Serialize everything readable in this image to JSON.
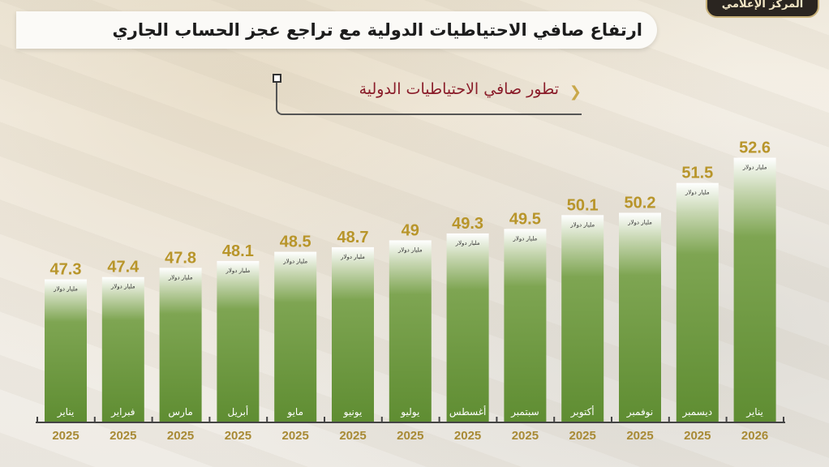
{
  "logo_text": "المركز الإعلامي",
  "title": "ارتفاع صافي الاحتياطيات الدولية مع تراجع عجز الحساب الجاري",
  "subtitle": "تطور صافي الاحتياطيات الدولية",
  "chart_data": {
    "type": "bar",
    "title": "تطور صافي الاحتياطيات الدولية",
    "unit": "مليار دولار",
    "categories": [
      "يناير",
      "فبراير",
      "مارس",
      "أبريل",
      "مايو",
      "يونيو",
      "يوليو",
      "أغسطس",
      "سبتمبر",
      "أكتوبر",
      "نوفمبر",
      "ديسمبر",
      "يناير"
    ],
    "years": [
      "2025",
      "2025",
      "2025",
      "2025",
      "2025",
      "2025",
      "2025",
      "2025",
      "2025",
      "2025",
      "2025",
      "2025",
      "2026"
    ],
    "values": [
      47.3,
      47.4,
      47.8,
      48.1,
      48.5,
      48.7,
      49,
      49.3,
      49.5,
      50.1,
      50.2,
      51.5,
      52.6
    ],
    "value_labels": [
      "47.3",
      "47.4",
      "47.8",
      "48.1",
      "48.5",
      "48.7",
      "49",
      "49.3",
      "49.5",
      "50.1",
      "50.2",
      "51.5",
      "52.6"
    ],
    "ylim": [
      41,
      53
    ],
    "grid": false,
    "colors": {
      "bar": "#6b9a3c",
      "value": "#b8952a",
      "year": "#a88a35"
    }
  }
}
